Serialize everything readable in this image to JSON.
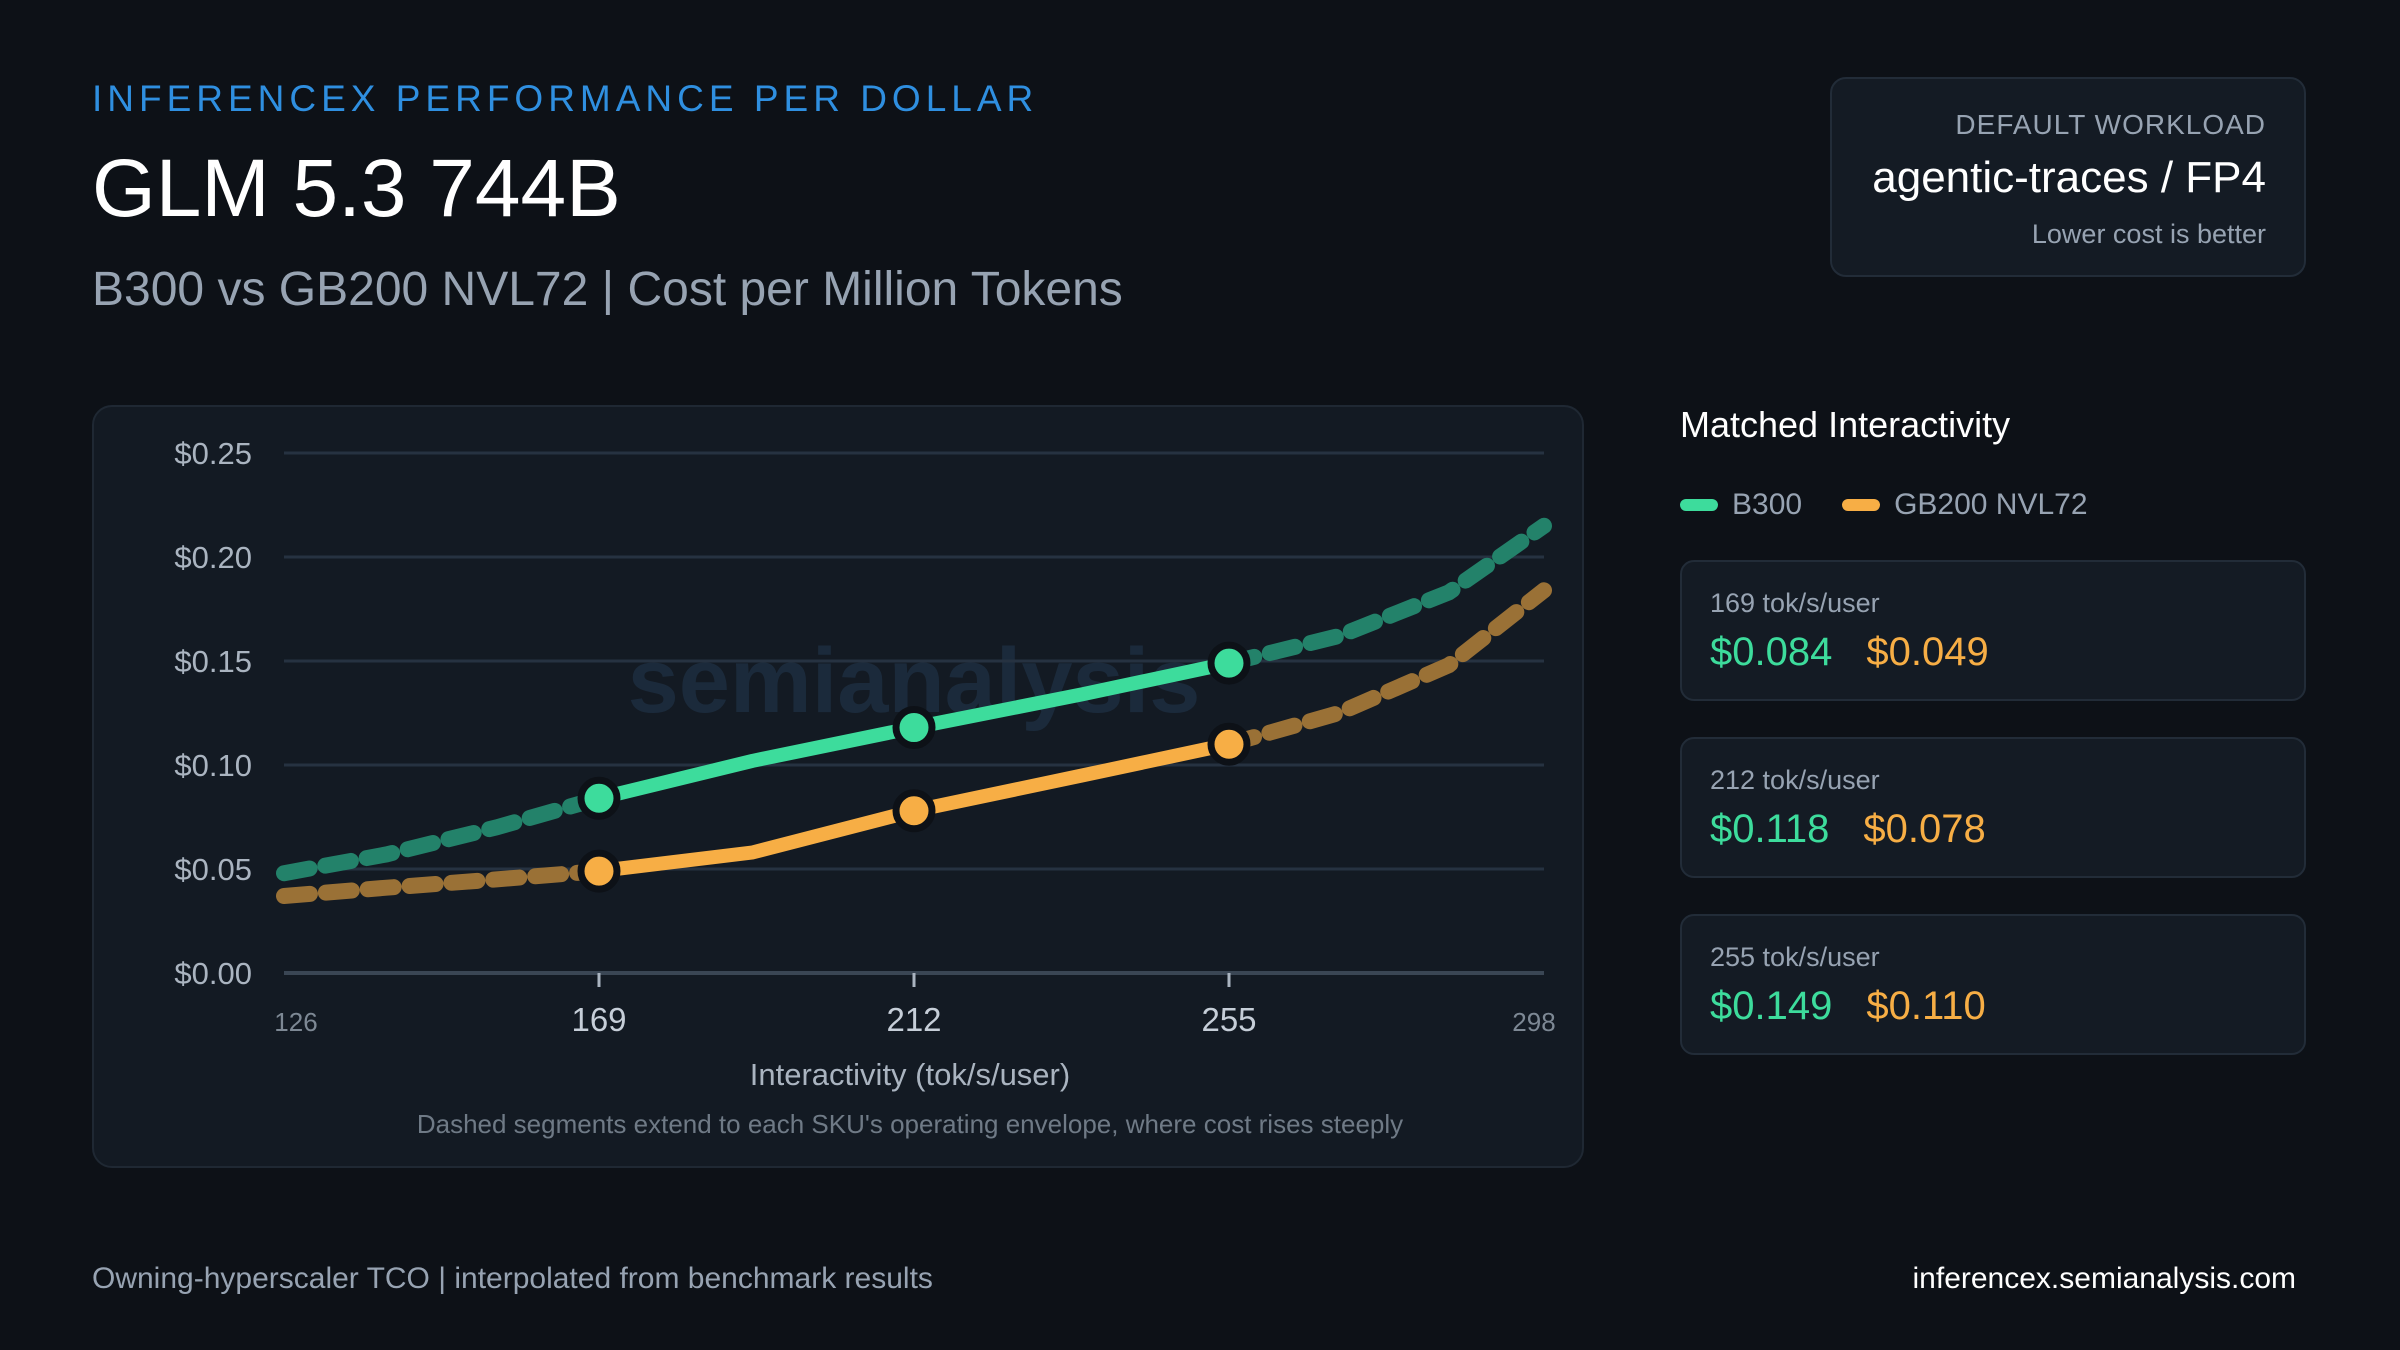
{
  "header": {
    "eyebrow": "INFERENCEX PERFORMANCE PER DOLLAR",
    "title": "GLM 5.3 744B",
    "subtitle": "B300 vs GB200 NVL72  | Cost per Million Tokens"
  },
  "workload": {
    "label": "DEFAULT  WORKLOAD",
    "value": "agentic-traces / FP4",
    "note": "Lower cost is better"
  },
  "side": {
    "title": "Matched Interactivity",
    "cards": [
      {
        "label": "169 tok/s/user",
        "b300": "$0.084",
        "gb200": "$0.049"
      },
      {
        "label": "212 tok/s/user",
        "b300": "$0.118",
        "gb200": "$0.078"
      },
      {
        "label": "255 tok/s/user",
        "b300": "$0.149",
        "gb200": "$0.110"
      }
    ]
  },
  "footer": {
    "left": "Owning-hyperscaler  TCO | interpolated  from benchmark  results",
    "right": "inferencex.semianalysis.com"
  },
  "colors": {
    "b300": "#3ddc9c",
    "gb200": "#f7ae45",
    "accent": "#2f8fe0"
  },
  "chart_data": {
    "type": "line",
    "xlabel": "Interactivity  (tok/s/user)",
    "ylabel": "",
    "note": "Dashed segments extend  to each SKU's operating  envelope, where cost rises steeply",
    "watermark": "semianalysis",
    "xlim": [
      126,
      298
    ],
    "ylim": [
      0,
      0.25
    ],
    "x_ticks": [
      126,
      169,
      212,
      255,
      298
    ],
    "x_tick_labels": [
      "126",
      "169",
      "212",
      "255",
      "298"
    ],
    "y_ticks": [
      0,
      0.05,
      0.1,
      0.15,
      0.2,
      0.25
    ],
    "y_tick_labels": [
      "$0.00",
      "$0.05",
      "$0.10",
      "$0.15",
      "$0.20",
      "$0.25"
    ],
    "grid": true,
    "legend": "right-panel",
    "series": [
      {
        "name": "B300",
        "color": "#3ddc9c",
        "dashed_left": [
          [
            126,
            0.048
          ],
          [
            140,
            0.057
          ],
          [
            155,
            0.07
          ],
          [
            169,
            0.084
          ]
        ],
        "solid": [
          [
            169,
            0.084
          ],
          [
            190,
            0.102
          ],
          [
            212,
            0.118
          ],
          [
            235,
            0.134
          ],
          [
            255,
            0.149
          ]
        ],
        "dashed_right": [
          [
            255,
            0.149
          ],
          [
            270,
            0.162
          ],
          [
            285,
            0.183
          ],
          [
            298,
            0.215
          ]
        ],
        "markers": [
          [
            169,
            0.084
          ],
          [
            212,
            0.118
          ],
          [
            255,
            0.149
          ]
        ]
      },
      {
        "name": "GB200 NVL72",
        "color": "#f7ae45",
        "dashed_left": [
          [
            126,
            0.037
          ],
          [
            140,
            0.041
          ],
          [
            155,
            0.045
          ],
          [
            169,
            0.049
          ]
        ],
        "solid": [
          [
            169,
            0.049
          ],
          [
            190,
            0.058
          ],
          [
            212,
            0.078
          ],
          [
            235,
            0.095
          ],
          [
            255,
            0.11
          ]
        ],
        "dashed_right": [
          [
            255,
            0.11
          ],
          [
            270,
            0.125
          ],
          [
            285,
            0.148
          ],
          [
            298,
            0.184
          ]
        ],
        "markers": [
          [
            169,
            0.049
          ],
          [
            212,
            0.078
          ],
          [
            255,
            0.11
          ]
        ]
      }
    ]
  }
}
